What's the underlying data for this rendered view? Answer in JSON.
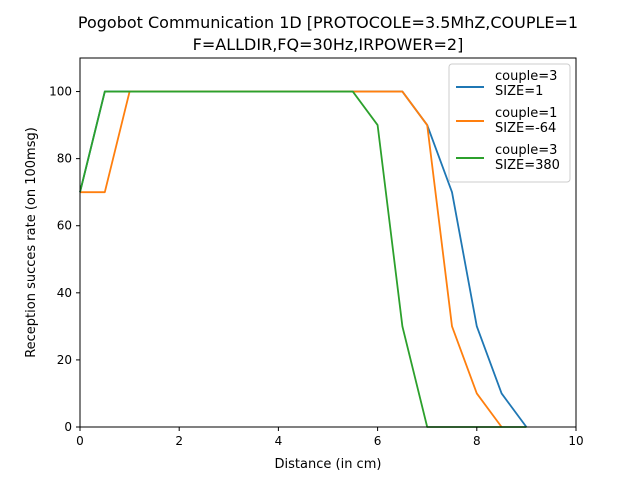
{
  "chart_data": {
    "type": "line",
    "title_line1": "Pogobot Communication 1D [PROTOCOLE=3.5MhZ,COUPLE=1",
    "title_line2": "F=ALLDIR,FQ=30Hz,IRPOWER=2]",
    "xlabel": "Distance (in cm)",
    "ylabel": "Reception succes rate (on 100msg)",
    "xlim": [
      0,
      10
    ],
    "ylim": [
      0,
      110
    ],
    "xticks": [
      0,
      2,
      4,
      6,
      8,
      10
    ],
    "yticks": [
      0,
      20,
      40,
      60,
      80,
      100
    ],
    "grid": false,
    "legend_position": "top-right",
    "series": [
      {
        "name_line1": "couple=3",
        "name_line2": "SIZE=1",
        "color": "#1f77b4",
        "x": [
          0,
          0.5,
          1,
          1.5,
          2,
          2.5,
          3,
          3.5,
          4,
          4.5,
          5,
          5.5,
          6,
          6.5,
          7,
          7.5,
          8,
          8.5,
          9
        ],
        "y": [
          70,
          100,
          100,
          100,
          100,
          100,
          100,
          100,
          100,
          100,
          100,
          100,
          100,
          100,
          90,
          70,
          30,
          10,
          0
        ]
      },
      {
        "name_line1": "couple=1",
        "name_line2": "SIZE=-64",
        "color": "#ff7f0e",
        "x": [
          0,
          0.5,
          1,
          1.5,
          2,
          2.5,
          3,
          3.5,
          4,
          4.5,
          5,
          5.5,
          6,
          6.5,
          7,
          7.5,
          8,
          8.5
        ],
        "y": [
          70,
          70,
          100,
          100,
          100,
          100,
          100,
          100,
          100,
          100,
          100,
          100,
          100,
          100,
          90,
          30,
          10,
          0
        ]
      },
      {
        "name_line1": "couple=3",
        "name_line2": "SIZE=380",
        "color": "#2ca02c",
        "x": [
          0,
          0.5,
          1,
          1.5,
          2,
          2.5,
          3,
          3.5,
          4,
          4.5,
          5,
          5.5,
          6,
          6.5,
          7,
          7.5,
          8,
          8.5,
          9
        ],
        "y": [
          70,
          100,
          100,
          100,
          100,
          100,
          100,
          100,
          100,
          100,
          100,
          100,
          90,
          30,
          0,
          0,
          0,
          0,
          0
        ]
      }
    ]
  }
}
